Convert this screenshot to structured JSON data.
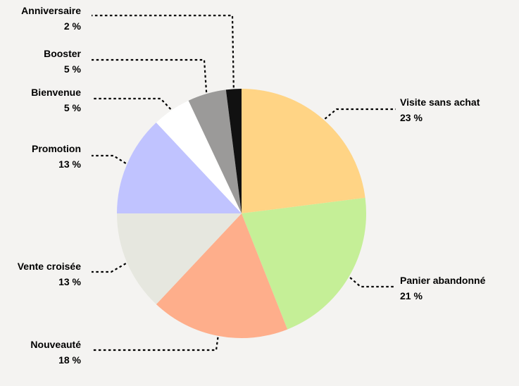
{
  "chart_data": {
    "type": "pie",
    "title": "",
    "slices": [
      {
        "label": "Visite sans achat",
        "value": 23,
        "value_label": "23 %",
        "color": "#ffd485"
      },
      {
        "label": "Panier abandonné",
        "value": 21,
        "value_label": "21 %",
        "color": "#c5ef97"
      },
      {
        "label": "Nouveauté",
        "value": 18,
        "value_label": "18 %",
        "color": "#feae8b"
      },
      {
        "label": "Vente croisée",
        "value": 13,
        "value_label": "13 %",
        "color": "#e6e7df"
      },
      {
        "label": "Promotion",
        "value": 13,
        "value_label": "13 %",
        "color": "#c0c3ff"
      },
      {
        "label": "Bienvenue",
        "value": 5,
        "value_label": "5 %",
        "color": "#ffffff"
      },
      {
        "label": "Booster",
        "value": 5,
        "value_label": "5 %",
        "color": "#9b9a99"
      },
      {
        "label": "Anniversaire",
        "value": 2,
        "value_label": "2 %",
        "color": "#111111"
      }
    ],
    "legend": "none",
    "start_angle": "12 o'clock",
    "direction": "clockwise"
  }
}
